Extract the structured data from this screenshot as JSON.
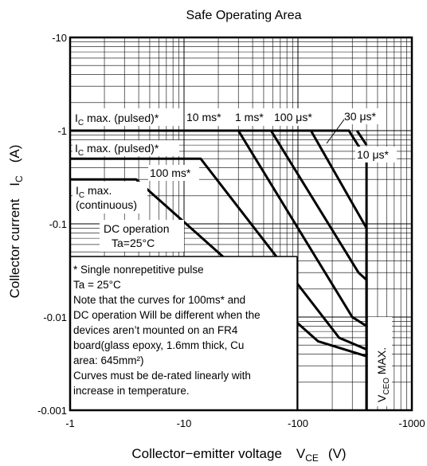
{
  "chart_data": {
    "type": "line",
    "title": "Safe Operating Area",
    "xlabel": {
      "text": "Collector−emitter voltage",
      "symbol": "V",
      "sub": "CE",
      "unit": "(V)"
    },
    "ylabel": {
      "text": "Collector current",
      "symbol": "I",
      "sub": "C",
      "unit": "(A)"
    },
    "x_scale": "log",
    "y_scale": "log",
    "xlim": [
      -1,
      -1000
    ],
    "ylim": [
      -0.001,
      -10
    ],
    "x_ticks": [
      "-1",
      "-10",
      "-100",
      "-1000"
    ],
    "y_ticks": [
      "-0.001",
      "-0.01",
      "-0.1",
      "-1",
      "-10"
    ],
    "grid": true,
    "series": [
      {
        "name": "30 μs*",
        "points": [
          [
            -1,
            -1
          ],
          [
            -280,
            -1
          ],
          [
            -400,
            -0.5
          ],
          [
            -400,
            -0.001
          ]
        ]
      },
      {
        "name": "10 μs*",
        "points": [
          [
            -330,
            -1
          ],
          [
            -400,
            -0.7
          ]
        ]
      },
      {
        "name": "100 μs*",
        "points": [
          [
            -1,
            -1
          ],
          [
            -130,
            -1
          ],
          [
            -400,
            -0.09
          ],
          [
            -400,
            -0.001
          ]
        ]
      },
      {
        "name": "1 ms*",
        "points": [
          [
            -1,
            -1
          ],
          [
            -58,
            -1
          ],
          [
            -340,
            -0.03
          ],
          [
            -400,
            -0.025
          ],
          [
            -400,
            -0.001
          ]
        ]
      },
      {
        "name": "10 ms*",
        "points": [
          [
            -1,
            -1
          ],
          [
            -30,
            -1
          ],
          [
            -300,
            -0.01
          ],
          [
            -400,
            -0.008
          ]
        ]
      },
      {
        "name": "100 ms*",
        "points": [
          [
            -1,
            -0.5
          ],
          [
            -14,
            -0.5
          ],
          [
            -230,
            -0.006
          ],
          [
            -400,
            -0.0045
          ]
        ]
      },
      {
        "name": "DC operation",
        "points": [
          [
            -1,
            -0.3
          ],
          [
            -3.8,
            -0.3
          ],
          [
            -150,
            -0.0055
          ],
          [
            -400,
            -0.0038
          ]
        ]
      }
    ],
    "annotations": {
      "ic_pulsed_1": {
        "pre": "I",
        "sub": "C",
        "post": " max. (pulsed)*"
      },
      "ic_pulsed_2": {
        "pre": "I",
        "sub": "C",
        "post": " max. (pulsed)*"
      },
      "ic_cont_1": {
        "pre": "I",
        "sub": "C",
        "post": " max."
      },
      "ic_cont_2": "(continuous)",
      "lbl_10ms": "10 ms*",
      "lbl_1ms": "1 ms*",
      "lbl_100us": "100 μs*",
      "lbl_30us": "30 μs*",
      "lbl_10us": "10 μs*",
      "lbl_100ms": "100 ms*",
      "dc_1": "DC operation",
      "dc_2": "Ta=25°C",
      "vceo": {
        "pre": "V",
        "sub": "CEO",
        "post": " MAX."
      },
      "note": [
        "* Single nonrepetitive pulse",
        "   Ta = 25°C",
        "Note that the curves for 100ms* and",
        "DC operation Will be different when the",
        "devices aren’t mounted on an FR4",
        "board(glass epoxy, 1.6mm thick, Cu",
        "area: 645mm²)",
        "Curves must be de-rated linearly with",
        "increase in temperature."
      ]
    }
  }
}
